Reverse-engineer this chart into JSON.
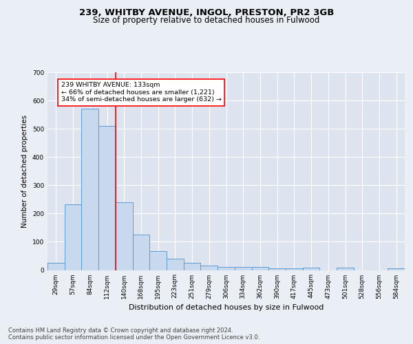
{
  "title1": "239, WHITBY AVENUE, INGOL, PRESTON, PR2 3GB",
  "title2": "Size of property relative to detached houses in Fulwood",
  "xlabel": "Distribution of detached houses by size in Fulwood",
  "ylabel": "Number of detached properties",
  "categories": [
    "29sqm",
    "57sqm",
    "84sqm",
    "112sqm",
    "140sqm",
    "168sqm",
    "195sqm",
    "223sqm",
    "251sqm",
    "279sqm",
    "306sqm",
    "334sqm",
    "362sqm",
    "390sqm",
    "417sqm",
    "445sqm",
    "473sqm",
    "501sqm",
    "528sqm",
    "556sqm",
    "584sqm"
  ],
  "values": [
    25,
    232,
    570,
    510,
    240,
    125,
    68,
    40,
    25,
    15,
    10,
    10,
    10,
    5,
    5,
    8,
    0,
    8,
    0,
    0,
    5
  ],
  "bar_color": "#c9d9ed",
  "bar_edge_color": "#5b9bd5",
  "redline_index": 4,
  "annotation_text": "239 WHITBY AVENUE: 133sqm\n← 66% of detached houses are smaller (1,221)\n34% of semi-detached houses are larger (632) →",
  "annotation_box_color": "white",
  "annotation_box_edge": "red",
  "footer": "Contains HM Land Registry data © Crown copyright and database right 2024.\nContains public sector information licensed under the Open Government Licence v3.0.",
  "bg_color": "#eaeef5",
  "plot_bg_color": "#dde4f0",
  "grid_color": "white",
  "ylim": [
    0,
    700
  ],
  "title1_fontsize": 9.5,
  "title2_fontsize": 8.5,
  "ylabel_fontsize": 7.5,
  "xlabel_fontsize": 8,
  "tick_fontsize": 6.5,
  "footer_fontsize": 6
}
